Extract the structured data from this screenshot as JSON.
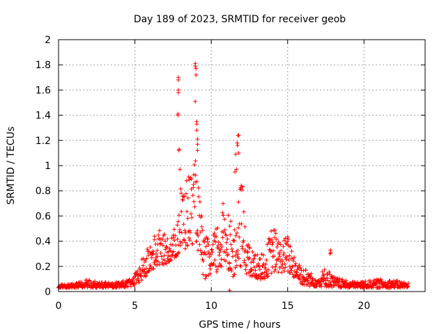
{
  "chart_data": {
    "type": "scatter",
    "title": "Day 189 of 2023, SRMTID for receiver geob",
    "xlabel": "GPS time / hours",
    "ylabel": "SRMTID / TECUs",
    "xlim": [
      0,
      24
    ],
    "ylim": [
      0,
      2
    ],
    "x_ticks": [
      0,
      5,
      10,
      15,
      20
    ],
    "x_tick_labels": [
      "0",
      "5",
      "10",
      "15",
      "20"
    ],
    "y_ticks": [
      0,
      0.2,
      0.4,
      0.6,
      0.8,
      1,
      1.2,
      1.4,
      1.6,
      1.8,
      2
    ],
    "y_tick_labels": [
      "0",
      "0.2",
      "0.4",
      "0.6",
      "0.8",
      "1",
      "1.2",
      "1.4",
      "1.6",
      "1.8",
      "2"
    ],
    "grid": true,
    "marker": "+",
    "color": "#ff0000",
    "series": [
      {
        "name": "geob",
        "envelope": [
          [
            0.0,
            0.03,
            0.06
          ],
          [
            1.0,
            0.03,
            0.06
          ],
          [
            2.0,
            0.03,
            0.1
          ],
          [
            3.0,
            0.03,
            0.08
          ],
          [
            4.0,
            0.03,
            0.08
          ],
          [
            4.8,
            0.04,
            0.1
          ],
          [
            5.2,
            0.06,
            0.18
          ],
          [
            5.6,
            0.1,
            0.3
          ],
          [
            6.0,
            0.15,
            0.38
          ],
          [
            6.5,
            0.2,
            0.5
          ],
          [
            7.0,
            0.22,
            0.45
          ],
          [
            7.5,
            0.25,
            0.45
          ],
          [
            8.0,
            0.3,
            0.85
          ],
          [
            8.5,
            0.35,
            0.95
          ],
          [
            9.0,
            0.4,
            1.05
          ],
          [
            9.5,
            0.1,
            0.45
          ],
          [
            10.0,
            0.1,
            0.4
          ],
          [
            10.5,
            0.15,
            0.6
          ],
          [
            11.0,
            0.2,
            0.8
          ],
          [
            11.5,
            0.1,
            0.45
          ],
          [
            12.0,
            0.2,
            0.95
          ],
          [
            12.5,
            0.1,
            0.35
          ],
          [
            13.0,
            0.1,
            0.3
          ],
          [
            13.5,
            0.1,
            0.3
          ],
          [
            14.0,
            0.15,
            0.55
          ],
          [
            14.5,
            0.15,
            0.4
          ],
          [
            15.0,
            0.15,
            0.45
          ],
          [
            15.5,
            0.1,
            0.3
          ],
          [
            16.0,
            0.05,
            0.2
          ],
          [
            16.5,
            0.04,
            0.15
          ],
          [
            17.0,
            0.04,
            0.12
          ],
          [
            17.5,
            0.04,
            0.2
          ],
          [
            18.0,
            0.03,
            0.12
          ],
          [
            19.0,
            0.03,
            0.08
          ],
          [
            20.0,
            0.03,
            0.08
          ],
          [
            21.0,
            0.03,
            0.1
          ],
          [
            22.0,
            0.03,
            0.09
          ],
          [
            22.9,
            0.03,
            0.07
          ]
        ],
        "outliers": [
          [
            7.85,
            1.7
          ],
          [
            7.85,
            1.68
          ],
          [
            7.85,
            1.6
          ],
          [
            7.85,
            1.58
          ],
          [
            7.82,
            1.41
          ],
          [
            7.82,
            1.4
          ],
          [
            7.9,
            1.13
          ],
          [
            7.88,
            1.12
          ],
          [
            7.95,
            0.97
          ],
          [
            8.95,
            1.81
          ],
          [
            8.95,
            1.79
          ],
          [
            9.0,
            1.77
          ],
          [
            9.0,
            1.72
          ],
          [
            8.95,
            1.51
          ],
          [
            9.05,
            1.35
          ],
          [
            9.05,
            1.33
          ],
          [
            9.05,
            1.28
          ],
          [
            9.1,
            1.21
          ],
          [
            9.1,
            1.17
          ],
          [
            9.1,
            1.12
          ],
          [
            11.75,
            1.24
          ],
          [
            11.8,
            1.24
          ],
          [
            11.7,
            1.18
          ],
          [
            11.72,
            1.16
          ],
          [
            11.6,
            1.09
          ],
          [
            11.8,
            1.1
          ],
          [
            11.65,
            0.97
          ],
          [
            11.55,
            0.95
          ],
          [
            17.8,
            0.33
          ],
          [
            17.82,
            0.31
          ],
          [
            17.78,
            0.3
          ],
          [
            11.2,
            0.01
          ]
        ]
      }
    ]
  }
}
